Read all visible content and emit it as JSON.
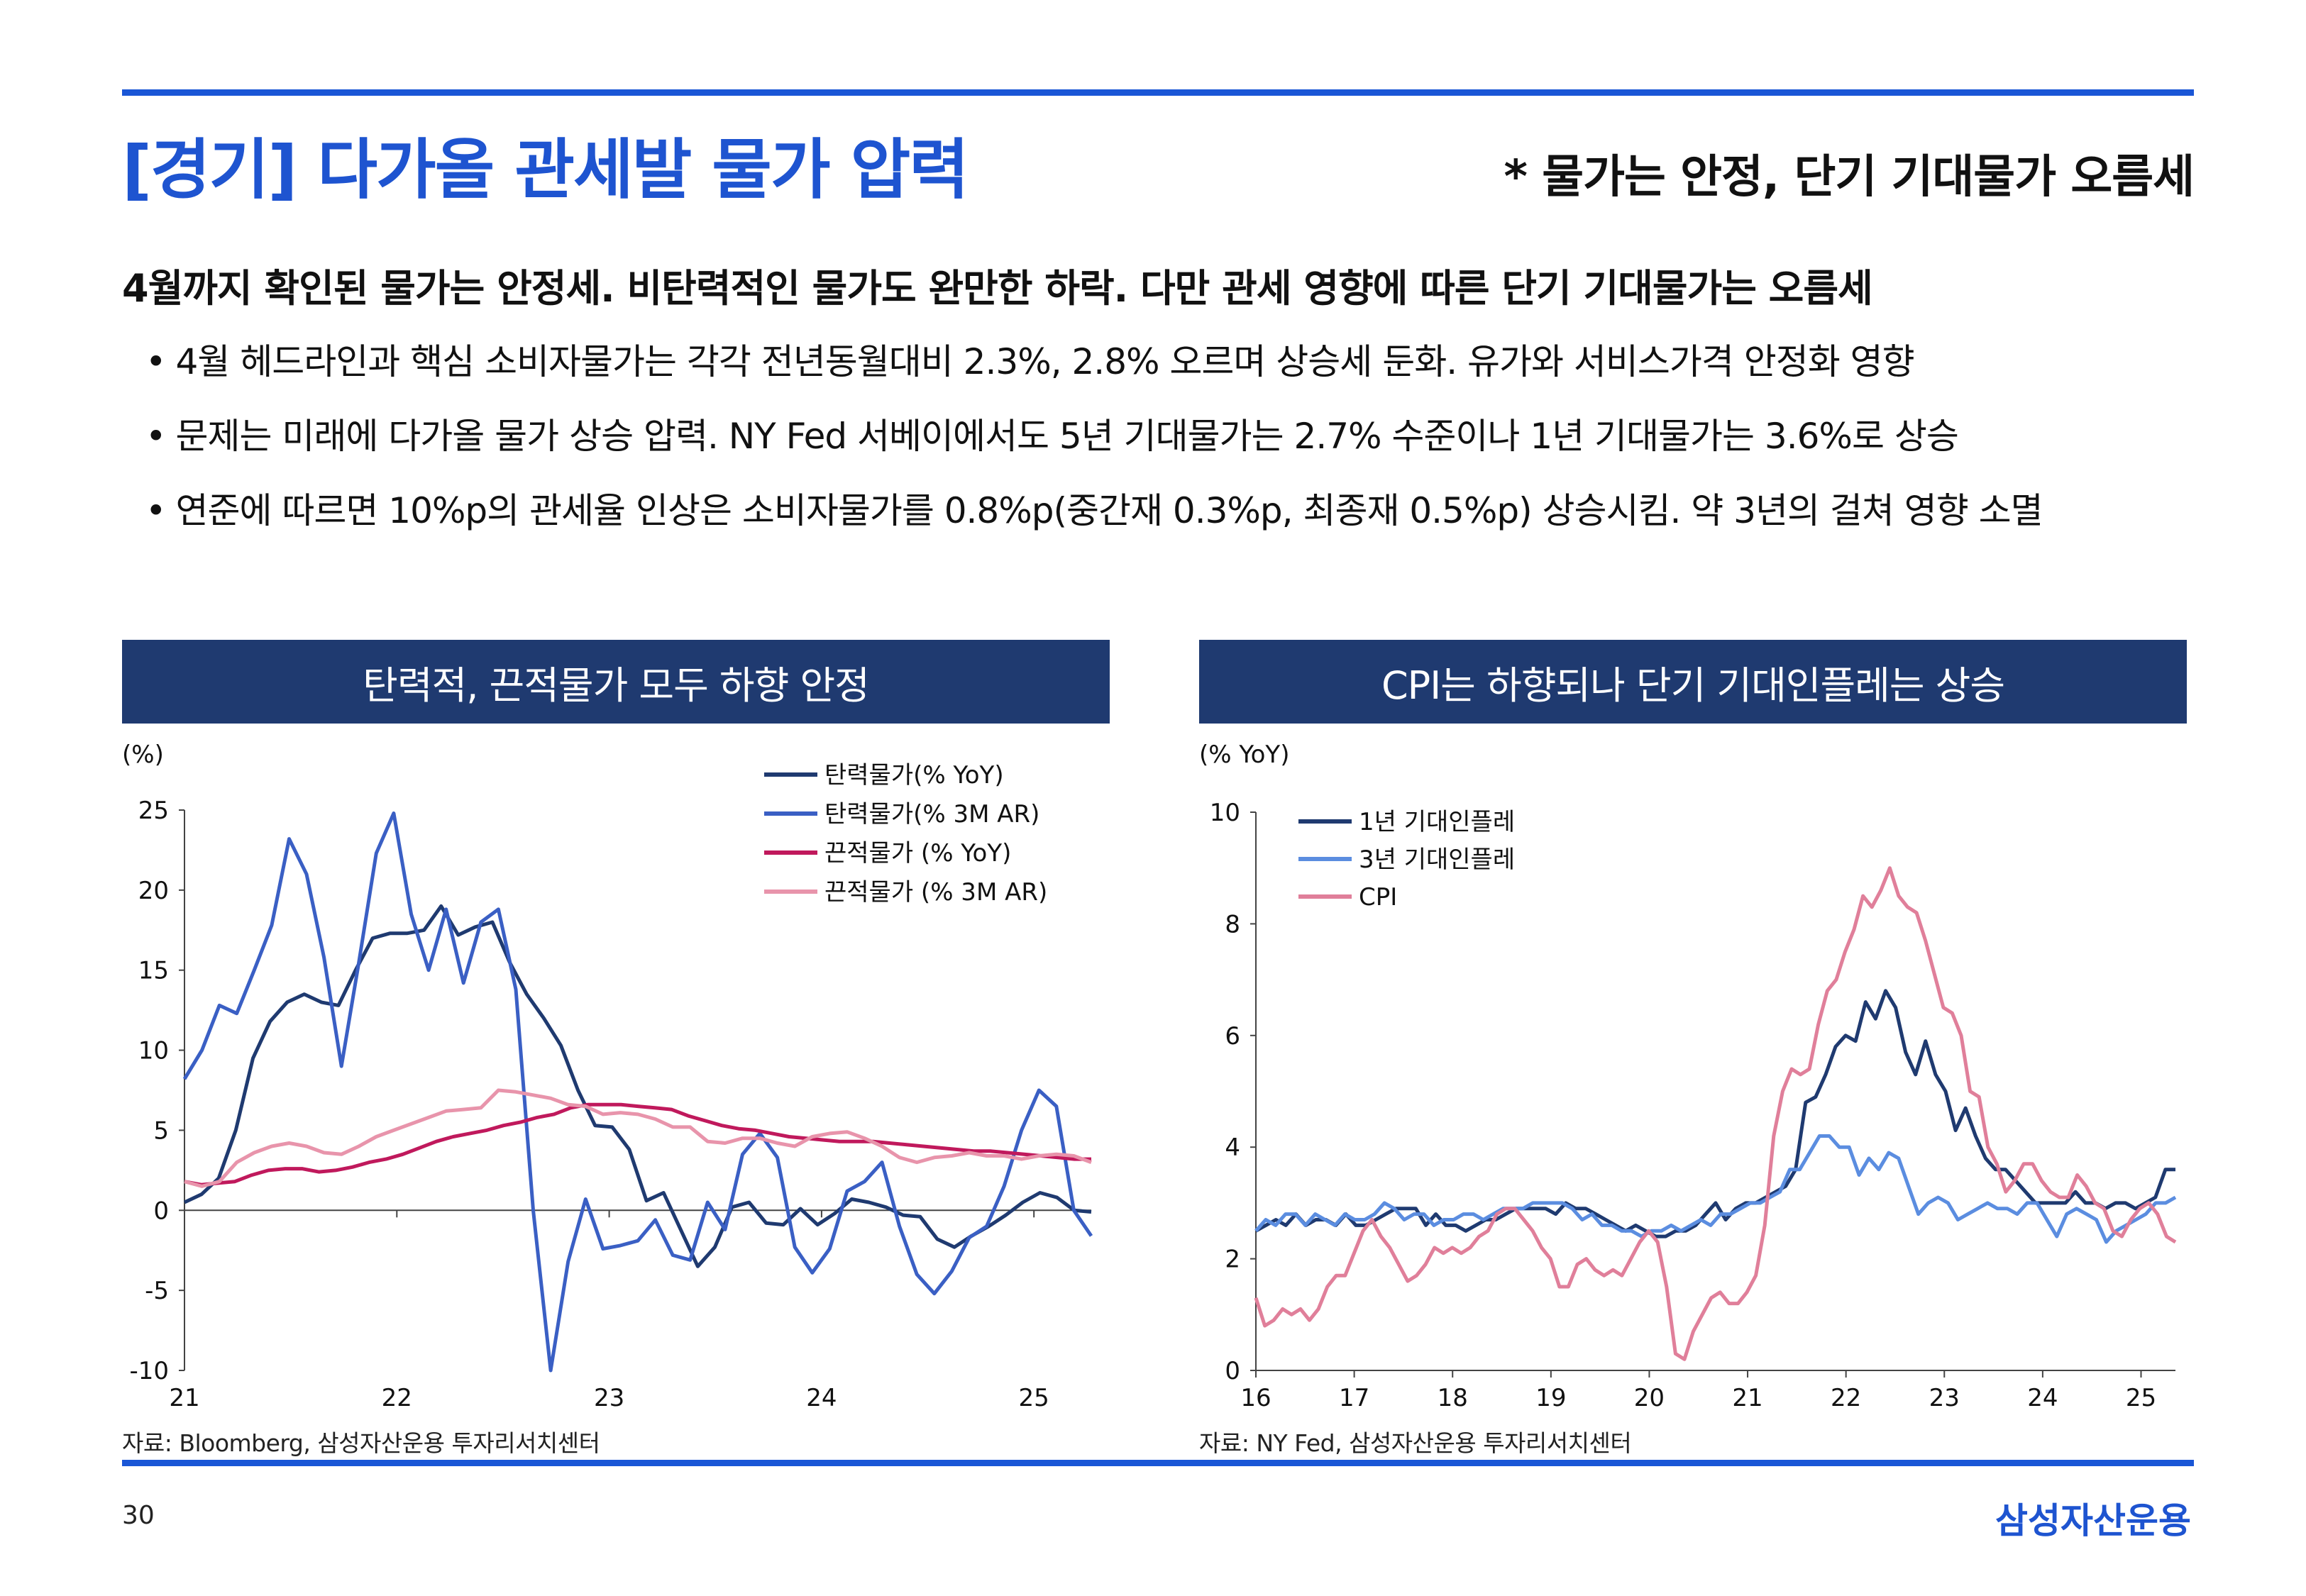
{
  "header": {
    "title": "[경기] 다가올 관세발 물가 압력",
    "subtitle": "* 물가는 안정, 단기 기대물가 오름세"
  },
  "summary": "4월까지 확인된 물가는 안정세. 비탄력적인 물가도 완만한 하락. 다만 관세 영향에 따른 단기 기대물가는 오름세",
  "bullets": [
    "4월 헤드라인과 핵심 소비자물가는 각각 전년동월대비 2.3%, 2.8% 오르며 상승세 둔화. 유가와 서비스가격 안정화 영향",
    "문제는 미래에 다가올 물가 상승 압력. NY Fed 서베이에서도 5년 기대물가는 2.7% 수준이나 1년 기대물가는 3.6%로 상승",
    "연준에 따르면 10%p의 관세율 인상은 소비자물가를 0.8%p(중간재 0.3%p, 최종재 0.5%p) 상승시킴. 약 3년의 걸쳐 영향 소멸"
  ],
  "footer": {
    "page_number": "30",
    "brand": "삼성자산운용"
  },
  "colors": {
    "accent": "#1e54d0",
    "panel": "#1f3a70"
  },
  "chart_data": [
    {
      "type": "line",
      "panel_title": "탄력적, 끈적물가 모두 하향 안정",
      "ylabel": "(%)",
      "ylim": [
        -10,
        25
      ],
      "yticks": [
        "25",
        "20",
        "15",
        "10",
        "5",
        "0",
        "-5",
        "-10"
      ],
      "xlim": [
        2021,
        2025.27
      ],
      "xticks": [
        "21",
        "22",
        "23",
        "24",
        "25"
      ],
      "source": "자료: Bloomberg, 삼성자산운용 투자리서치센터",
      "series": [
        {
          "name": "탄력물가(% YoY)",
          "color": "#1f3a70",
          "values": [
            0.5,
            1.0,
            2.0,
            5.0,
            9.5,
            11.8,
            13.0,
            13.5,
            13.0,
            12.8,
            15.0,
            17.0,
            17.3,
            17.3,
            17.5,
            19.0,
            17.2,
            17.7,
            18.0,
            15.5,
            13.5,
            12.0,
            10.3,
            7.5,
            5.3,
            5.2,
            3.8,
            0.6,
            1.1,
            -1.2,
            -3.5,
            -2.3,
            0.2,
            0.5,
            -0.8,
            -0.9,
            0.1,
            -0.9,
            -0.2,
            0.7,
            0.5,
            0.2,
            -0.3,
            -0.4,
            -1.8,
            -2.3,
            -1.6,
            -1.0,
            -0.3,
            0.5,
            1.1,
            0.8,
            0.0,
            -0.1
          ]
        },
        {
          "name": "탄력물가(% 3M AR)",
          "color": "#3a5fc4",
          "values": [
            8.2,
            10.0,
            12.8,
            12.3,
            15.0,
            17.8,
            23.2,
            21.0,
            15.8,
            9.0,
            15.5,
            22.3,
            24.8,
            18.5,
            15.0,
            18.8,
            14.2,
            18.0,
            18.8,
            13.8,
            0.0,
            -10.0,
            -3.2,
            0.7,
            -2.4,
            -2.2,
            -1.9,
            -0.6,
            -2.8,
            -3.1,
            0.5,
            -1.2,
            3.5,
            4.8,
            3.3,
            -2.3,
            -3.9,
            -2.4,
            1.2,
            1.8,
            3.0,
            -1.0,
            -4.0,
            -5.2,
            -3.8,
            -1.7,
            -1.0,
            1.5,
            5.0,
            7.5,
            6.5,
            0.0,
            -1.6
          ]
        },
        {
          "name": "끈적물가 (% YoY)",
          "color": "#c0195c",
          "values": [
            1.8,
            1.6,
            1.7,
            1.8,
            2.2,
            2.5,
            2.6,
            2.6,
            2.4,
            2.5,
            2.7,
            3.0,
            3.2,
            3.5,
            3.9,
            4.3,
            4.6,
            4.8,
            5.0,
            5.3,
            5.5,
            5.8,
            6.0,
            6.4,
            6.6,
            6.6,
            6.6,
            6.5,
            6.4,
            6.3,
            5.9,
            5.6,
            5.3,
            5.1,
            5.0,
            4.8,
            4.6,
            4.5,
            4.4,
            4.3,
            4.3,
            4.3,
            4.2,
            4.1,
            4.0,
            3.9,
            3.8,
            3.7,
            3.7,
            3.6,
            3.5,
            3.4,
            3.3,
            3.2,
            3.2
          ]
        },
        {
          "name": "끈적물가 (% 3M AR)",
          "color": "#e894ab",
          "values": [
            1.8,
            1.5,
            1.8,
            3.0,
            3.6,
            4.0,
            4.2,
            4.0,
            3.6,
            3.5,
            4.0,
            4.6,
            5.0,
            5.4,
            5.8,
            6.2,
            6.3,
            6.4,
            7.5,
            7.4,
            7.2,
            7.0,
            6.6,
            6.5,
            6.0,
            6.1,
            6.0,
            5.7,
            5.2,
            5.2,
            4.3,
            4.2,
            4.5,
            4.5,
            4.2,
            4.0,
            4.6,
            4.8,
            4.9,
            4.5,
            4.0,
            3.3,
            3.0,
            3.3,
            3.4,
            3.6,
            3.4,
            3.4,
            3.2,
            3.4,
            3.5,
            3.4,
            3.0
          ]
        }
      ]
    },
    {
      "type": "line",
      "panel_title": "CPI는 하향되나 단기 기대인플레는 상승",
      "ylabel": "(% YoY)",
      "ylim": [
        0,
        10
      ],
      "yticks": [
        "10",
        "8",
        "6",
        "4",
        "2",
        "0"
      ],
      "xlim": [
        2016,
        2025.35
      ],
      "xticks": [
        "16",
        "17",
        "18",
        "19",
        "20",
        "21",
        "22",
        "23",
        "24",
        "25"
      ],
      "source": "자료: NY Fed, 삼성자산운용 투자리서치센터",
      "series": [
        {
          "name": "1년 기대인플레",
          "color": "#1f3a70",
          "values": [
            2.5,
            2.6,
            2.7,
            2.6,
            2.8,
            2.6,
            2.7,
            2.7,
            2.6,
            2.8,
            2.6,
            2.6,
            2.7,
            2.8,
            2.9,
            2.9,
            2.9,
            2.6,
            2.8,
            2.6,
            2.6,
            2.5,
            2.6,
            2.7,
            2.7,
            2.8,
            2.9,
            2.9,
            2.9,
            2.9,
            2.8,
            3.0,
            2.9,
            2.9,
            2.8,
            2.7,
            2.6,
            2.5,
            2.6,
            2.5,
            2.4,
            2.4,
            2.5,
            2.5,
            2.6,
            2.8,
            3.0,
            2.7,
            2.9,
            3.0,
            3.0,
            3.1,
            3.2,
            3.3,
            3.6,
            4.8,
            4.9,
            5.3,
            5.8,
            6.0,
            5.9,
            6.6,
            6.3,
            6.8,
            6.5,
            5.7,
            5.3,
            5.9,
            5.3,
            5.0,
            4.3,
            4.7,
            4.2,
            3.8,
            3.6,
            3.6,
            3.4,
            3.2,
            3.0,
            3.0,
            3.0,
            3.0,
            3.2,
            3.0,
            3.0,
            2.9,
            3.0,
            3.0,
            2.9,
            3.0,
            3.1,
            3.6,
            3.6
          ]
        },
        {
          "name": "3년 기대인플레",
          "color": "#5b8de0",
          "values": [
            2.5,
            2.7,
            2.6,
            2.8,
            2.8,
            2.6,
            2.8,
            2.7,
            2.6,
            2.8,
            2.7,
            2.7,
            2.8,
            3.0,
            2.9,
            2.7,
            2.8,
            2.8,
            2.6,
            2.7,
            2.7,
            2.8,
            2.8,
            2.7,
            2.8,
            2.9,
            2.9,
            2.9,
            3.0,
            3.0,
            3.0,
            3.0,
            2.9,
            2.7,
            2.8,
            2.6,
            2.6,
            2.5,
            2.5,
            2.4,
            2.5,
            2.5,
            2.6,
            2.5,
            2.6,
            2.7,
            2.6,
            2.8,
            2.8,
            2.9,
            3.0,
            3.0,
            3.1,
            3.2,
            3.6,
            3.6,
            3.9,
            4.2,
            4.2,
            4.0,
            4.0,
            3.5,
            3.8,
            3.6,
            3.9,
            3.8,
            3.3,
            2.8,
            3.0,
            3.1,
            3.0,
            2.7,
            2.8,
            2.9,
            3.0,
            2.9,
            2.9,
            2.8,
            3.0,
            3.0,
            2.7,
            2.4,
            2.8,
            2.9,
            2.8,
            2.7,
            2.3,
            2.5,
            2.6,
            2.7,
            2.8,
            3.0,
            3.0,
            3.1
          ]
        },
        {
          "name": "CPI",
          "color": "#e07f9a",
          "values": [
            1.3,
            0.8,
            0.9,
            1.1,
            1.0,
            1.1,
            0.9,
            1.1,
            1.5,
            1.7,
            1.7,
            2.1,
            2.5,
            2.7,
            2.4,
            2.2,
            1.9,
            1.6,
            1.7,
            1.9,
            2.2,
            2.1,
            2.2,
            2.1,
            2.2,
            2.4,
            2.5,
            2.8,
            2.9,
            2.9,
            2.7,
            2.5,
            2.2,
            2.0,
            1.5,
            1.5,
            1.9,
            2.0,
            1.8,
            1.7,
            1.8,
            1.7,
            2.0,
            2.3,
            2.5,
            2.3,
            1.5,
            0.3,
            0.2,
            0.7,
            1.0,
            1.3,
            1.4,
            1.2,
            1.2,
            1.4,
            1.7,
            2.6,
            4.2,
            5.0,
            5.4,
            5.3,
            5.4,
            6.2,
            6.8,
            7.0,
            7.5,
            7.9,
            8.5,
            8.3,
            8.6,
            9.0,
            8.5,
            8.3,
            8.2,
            7.7,
            7.1,
            6.5,
            6.4,
            6.0,
            5.0,
            4.9,
            4.0,
            3.7,
            3.2,
            3.4,
            3.7,
            3.7,
            3.4,
            3.2,
            3.1,
            3.1,
            3.5,
            3.3,
            3.0,
            2.9,
            2.5,
            2.4,
            2.7,
            2.9,
            3.0,
            2.8,
            2.4,
            2.3
          ]
        }
      ]
    }
  ]
}
